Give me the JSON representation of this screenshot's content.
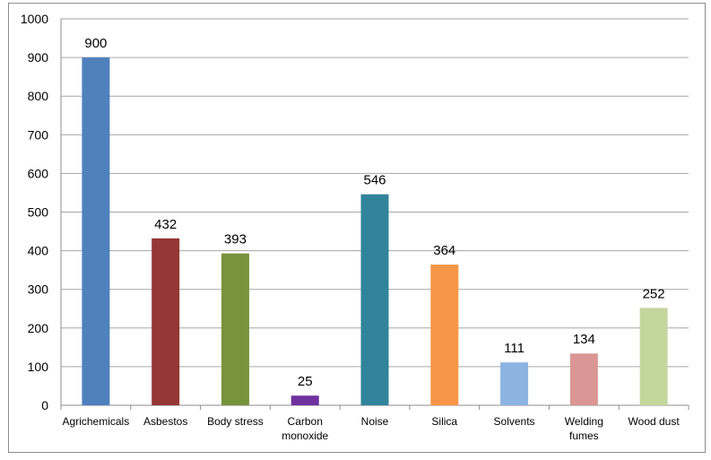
{
  "chart_data": {
    "type": "bar",
    "title": "",
    "xlabel": "",
    "ylabel": "",
    "ylim": [
      0,
      1000
    ],
    "yticks": [
      "0",
      "100",
      "200",
      "300",
      "400",
      "500",
      "600",
      "700",
      "800",
      "900",
      "1000"
    ],
    "grid": true,
    "legend": "none",
    "categories": [
      [
        "Agrichemicals"
      ],
      [
        "Asbestos"
      ],
      [
        "Body stress"
      ],
      [
        "Carbon",
        "monoxide"
      ],
      [
        "Noise"
      ],
      [
        "Silica"
      ],
      [
        "Solvents"
      ],
      [
        "Welding",
        "fumes"
      ],
      [
        "Wood dust"
      ]
    ],
    "values": [
      900,
      432,
      393,
      25,
      546,
      364,
      111,
      134,
      252
    ],
    "colors": [
      "#4f81bd",
      "#953735",
      "#77933c",
      "#7030a0",
      "#31849b",
      "#f79646",
      "#8db3e2",
      "#d99694",
      "#c3d69b"
    ]
  }
}
